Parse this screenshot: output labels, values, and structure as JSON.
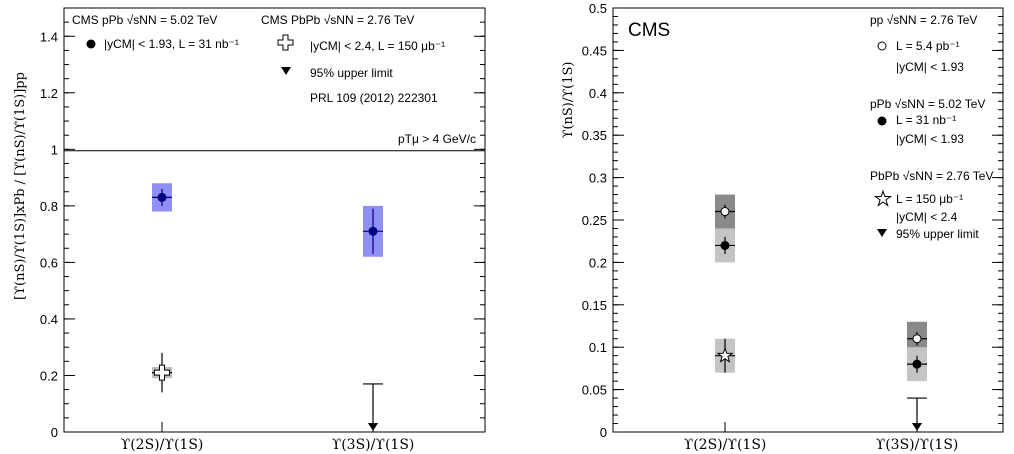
{
  "chart_data": [
    {
      "type": "scatter",
      "title": "",
      "ylabel": "[ϒ(nS)/ϒ(1S)]xPb / [ϒ(nS)/ϒ(1S)]pp",
      "xlabel": "",
      "ylim": [
        0,
        1.5
      ],
      "yticks": [
        "0",
        "0.2",
        "0.4",
        "0.6",
        "0.8",
        "1",
        "1.2",
        "1.4"
      ],
      "categories": [
        "ϒ(2S)/ϒ(1S)",
        "ϒ(3S)/ϒ(1S)"
      ],
      "reference_line": 1.0,
      "series": [
        {
          "name": "CMS pPb √sNN = 5.02 TeV, |yCM| < 1.93, L = 31 nb⁻¹",
          "marker": "filled-circle",
          "values": [
            0.83,
            0.71
          ],
          "stat_err": [
            0.03,
            0.08
          ],
          "syst_err": [
            0.05,
            0.09
          ],
          "color": "#000080",
          "box_color": "#8f8ff5"
        },
        {
          "name": "CMS PbPb √sNN = 2.76 TeV, |yCM| < 2.4, L = 150 μb⁻¹",
          "marker": "open-cross",
          "values": [
            0.21,
            null
          ],
          "stat_err": [
            0.07,
            null
          ],
          "syst_err": [
            0.02,
            null
          ],
          "upper_limit": [
            null,
            0.17
          ],
          "color": "#000000",
          "box_color": "#bdbdbd"
        }
      ],
      "legend": {
        "left_header": "CMS pPb √sNN = 5.02 TeV",
        "left_entry": "|yCM| < 1.93, L = 31 nb⁻¹",
        "right_header": "CMS PbPb √sNN = 2.76 TeV",
        "right_entry": "|yCM| < 2.4, L = 150 μb⁻¹",
        "upper_limit_entry": "95% upper limit",
        "reference": "PRL 109 (2012) 222301",
        "cut": "pTμ > 4 GeV/c",
        "placement": "top"
      }
    },
    {
      "type": "scatter",
      "title": "",
      "ylabel": "ϒ(nS)/ϒ(1S)",
      "xlabel": "",
      "ylim": [
        0,
        0.5
      ],
      "yticks": [
        "0",
        "0.05",
        "0.1",
        "0.15",
        "0.2",
        "0.25",
        "0.3",
        "0.35",
        "0.4",
        "0.45",
        "0.5"
      ],
      "categories": [
        "ϒ(2S)/ϒ(1S)",
        "ϒ(3S)/ϒ(1S)"
      ],
      "label": "CMS",
      "series": [
        {
          "name": "pp √sNN = 2.76 TeV, L = 5.4 pb⁻¹, |yCM| < 1.93",
          "marker": "open-circle",
          "values": [
            0.26,
            0.11
          ],
          "stat_err": [
            0.008,
            0.008
          ],
          "syst_err": [
            0.02,
            0.02
          ],
          "box_color": "#8a8a8a"
        },
        {
          "name": "pPb √sNN = 5.02 TeV, L = 31 nb⁻¹, |yCM| < 1.93",
          "marker": "filled-circle",
          "values": [
            0.22,
            0.08
          ],
          "stat_err": [
            0.01,
            0.01
          ],
          "syst_err": [
            0.02,
            0.02
          ],
          "box_color": "#c4c4c4"
        },
        {
          "name": "PbPb √sNN = 2.76 TeV, L = 150 μb⁻¹, |yCM| < 2.4",
          "marker": "open-star",
          "values": [
            0.09,
            null
          ],
          "stat_err": [
            0.02,
            null
          ],
          "syst_err": [
            0.02,
            null
          ],
          "upper_limit": [
            null,
            0.04
          ],
          "box_color": "#c4c4c4"
        }
      ],
      "legend": {
        "pp_header": "pp √sNN = 2.76 TeV",
        "pp_lumi": "L = 5.4 pb⁻¹",
        "pp_rap": "|yCM| < 1.93",
        "ppb_header": "pPb √sNN = 5.02 TeV",
        "ppb_lumi": "L = 31 nb⁻¹",
        "ppb_rap": "|yCM| < 1.93",
        "pbpb_header": "PbPb √sNN = 2.76 TeV",
        "pbpb_lumi": "L = 150 μb⁻¹",
        "pbpb_rap": "|yCM| < 2.4",
        "upper_limit_entry": "95% upper limit",
        "placement": "top-right"
      }
    }
  ]
}
